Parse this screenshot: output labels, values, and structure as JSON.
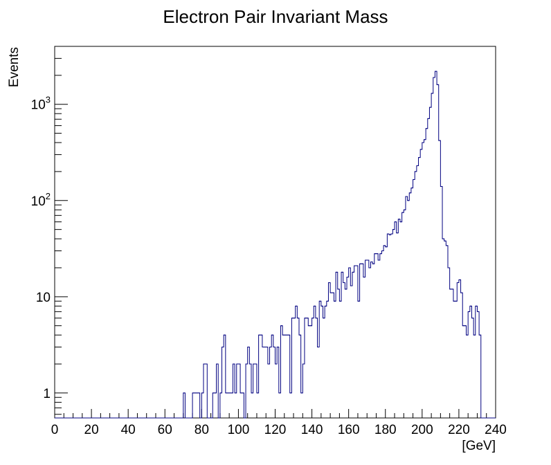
{
  "chart_data": {
    "type": "histogram",
    "title": "Electron Pair Invariant Mass",
    "xlabel": "[GeV]",
    "ylabel": "Events",
    "xlim": [
      0,
      240
    ],
    "ylim": [
      0.55,
      4000
    ],
    "yscale": "log",
    "bin_width": 1,
    "x_ticks": [
      0,
      20,
      40,
      60,
      80,
      100,
      120,
      140,
      160,
      180,
      200,
      220,
      240
    ],
    "x_tick_labels": [
      "0",
      "20",
      "40",
      "60",
      "80",
      "100",
      "120",
      "140",
      "160",
      "180",
      "200",
      "220",
      "240"
    ],
    "y_ticks": [
      {
        "value": 1,
        "base": "1",
        "exp": ""
      },
      {
        "value": 10,
        "base": "10",
        "exp": ""
      },
      {
        "value": 100,
        "base": "10",
        "exp": "2"
      },
      {
        "value": 1000,
        "base": "10",
        "exp": "3"
      }
    ],
    "line_color": "#000080",
    "bins": [
      [
        70,
        1
      ],
      [
        75,
        1
      ],
      [
        76,
        1
      ],
      [
        77,
        1
      ],
      [
        78,
        1
      ],
      [
        80,
        1
      ],
      [
        81,
        2
      ],
      [
        82,
        2
      ],
      [
        86,
        1
      ],
      [
        87,
        1
      ],
      [
        88,
        2
      ],
      [
        90,
        1
      ],
      [
        91,
        3
      ],
      [
        92,
        4
      ],
      [
        93,
        1
      ],
      [
        94,
        1
      ],
      [
        95,
        1
      ],
      [
        96,
        1
      ],
      [
        97,
        2
      ],
      [
        98,
        1
      ],
      [
        99,
        2
      ],
      [
        100,
        2
      ],
      [
        101,
        1
      ],
      [
        102,
        1
      ],
      [
        104,
        2
      ],
      [
        105,
        3
      ],
      [
        106,
        2
      ],
      [
        107,
        1
      ],
      [
        108,
        2
      ],
      [
        109,
        2
      ],
      [
        110,
        1
      ],
      [
        111,
        4
      ],
      [
        112,
        4
      ],
      [
        113,
        3
      ],
      [
        114,
        3
      ],
      [
        115,
        3
      ],
      [
        116,
        2
      ],
      [
        117,
        3
      ],
      [
        118,
        4
      ],
      [
        119,
        3
      ],
      [
        120,
        2
      ],
      [
        121,
        3
      ],
      [
        122,
        1
      ],
      [
        123,
        5
      ],
      [
        124,
        4
      ],
      [
        125,
        4
      ],
      [
        126,
        4
      ],
      [
        127,
        4
      ],
      [
        128,
        1
      ],
      [
        129,
        6
      ],
      [
        130,
        6
      ],
      [
        131,
        8
      ],
      [
        132,
        6
      ],
      [
        133,
        4
      ],
      [
        134,
        1
      ],
      [
        135,
        2
      ],
      [
        136,
        6
      ],
      [
        137,
        6
      ],
      [
        138,
        5
      ],
      [
        139,
        5
      ],
      [
        140,
        6
      ],
      [
        141,
        8
      ],
      [
        142,
        6
      ],
      [
        143,
        3
      ],
      [
        144,
        9
      ],
      [
        145,
        8
      ],
      [
        146,
        6
      ],
      [
        147,
        8
      ],
      [
        148,
        9
      ],
      [
        149,
        14
      ],
      [
        150,
        11
      ],
      [
        151,
        11
      ],
      [
        152,
        9
      ],
      [
        153,
        18
      ],
      [
        154,
        12
      ],
      [
        155,
        9
      ],
      [
        156,
        18
      ],
      [
        157,
        14
      ],
      [
        158,
        12
      ],
      [
        159,
        16
      ],
      [
        160,
        20
      ],
      [
        161,
        13
      ],
      [
        162,
        18
      ],
      [
        163,
        21
      ],
      [
        164,
        21
      ],
      [
        165,
        9
      ],
      [
        166,
        22
      ],
      [
        167,
        22
      ],
      [
        168,
        16
      ],
      [
        169,
        24
      ],
      [
        170,
        24
      ],
      [
        171,
        20
      ],
      [
        172,
        23
      ],
      [
        173,
        22
      ],
      [
        174,
        28
      ],
      [
        175,
        28
      ],
      [
        176,
        24
      ],
      [
        177,
        28
      ],
      [
        178,
        30
      ],
      [
        179,
        34
      ],
      [
        180,
        33
      ],
      [
        181,
        45
      ],
      [
        182,
        44
      ],
      [
        183,
        45
      ],
      [
        184,
        50
      ],
      [
        185,
        60
      ],
      [
        186,
        46
      ],
      [
        187,
        64
      ],
      [
        188,
        60
      ],
      [
        189,
        75
      ],
      [
        190,
        80
      ],
      [
        191,
        110
      ],
      [
        192,
        100
      ],
      [
        193,
        120
      ],
      [
        194,
        135
      ],
      [
        195,
        165
      ],
      [
        196,
        200
      ],
      [
        197,
        230
      ],
      [
        198,
        280
      ],
      [
        199,
        340
      ],
      [
        200,
        400
      ],
      [
        201,
        430
      ],
      [
        202,
        560
      ],
      [
        203,
        710
      ],
      [
        204,
        930
      ],
      [
        205,
        1300
      ],
      [
        206,
        1900
      ],
      [
        207,
        2200
      ],
      [
        208,
        1600
      ],
      [
        209,
        420
      ],
      [
        210,
        140
      ],
      [
        211,
        40
      ],
      [
        212,
        38
      ],
      [
        213,
        34
      ],
      [
        214,
        20
      ],
      [
        215,
        12
      ],
      [
        216,
        12
      ],
      [
        217,
        9
      ],
      [
        218,
        9
      ],
      [
        219,
        14
      ],
      [
        220,
        15
      ],
      [
        221,
        11
      ],
      [
        222,
        5
      ],
      [
        223,
        5
      ],
      [
        224,
        4
      ],
      [
        225,
        7
      ],
      [
        226,
        8
      ],
      [
        227,
        6
      ],
      [
        228,
        4
      ],
      [
        229,
        8
      ],
      [
        230,
        7
      ],
      [
        231,
        4
      ]
    ]
  }
}
